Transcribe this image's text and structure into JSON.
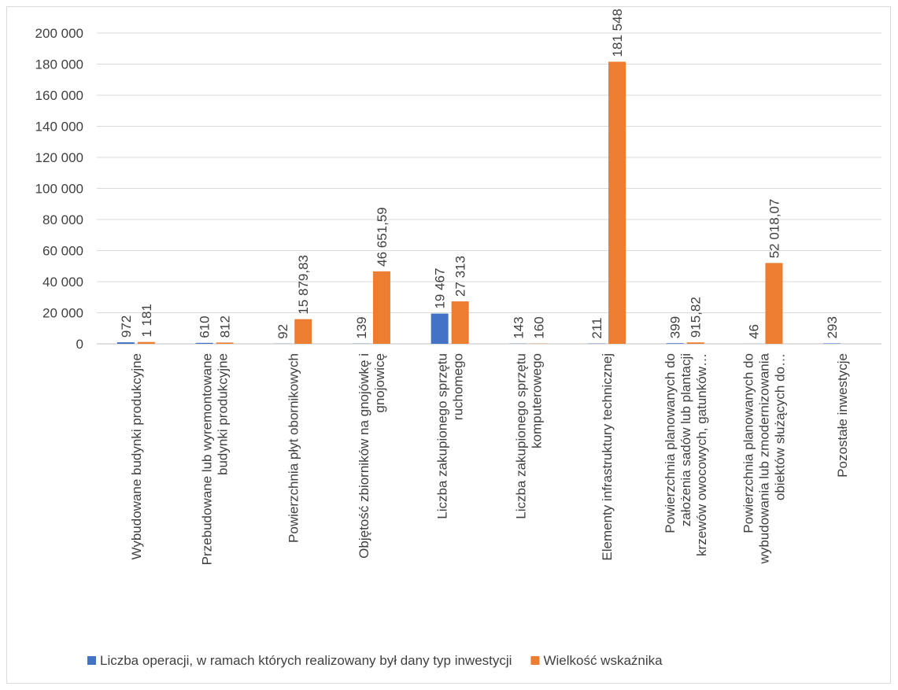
{
  "chart_data": {
    "type": "bar",
    "categories": [
      [
        "Wybudowane budynki produkcyjne"
      ],
      [
        "Przebudowane lub wyremontowane",
        "budynki produkcyjne"
      ],
      [
        "Powierzchnia płyt obornikowych"
      ],
      [
        "Objętość zbiorników na gnojówkę i",
        "gnojowicę"
      ],
      [
        "Liczba zakupionego sprzętu",
        "ruchomego"
      ],
      [
        "Liczba zakupionego sprzętu",
        "komputerowego"
      ],
      [
        "Elementy infrastruktury technicznej"
      ],
      [
        "Powierzchnia planowanych do",
        "założenia sadów lub plantacji",
        "krzewów owocowych, gatunków…"
      ],
      [
        "Powierzchnia planowanych do",
        "wybudowania lub zmodernizowania",
        "obiektów służących do…"
      ],
      [
        "Pozostałe inwestycje"
      ]
    ],
    "series": [
      {
        "name": "Liczba operacji, w ramach których realizowany był dany typ inwestycji",
        "color": "#4472C4",
        "values": [
          972,
          610,
          92,
          139,
          19467,
          143,
          211,
          399,
          46,
          293
        ],
        "labels": [
          "972",
          "610",
          "92",
          "139",
          "19 467",
          "143",
          "211",
          "399",
          "46",
          "293"
        ]
      },
      {
        "name": "Wielkość wskaźnika",
        "color": "#ED7D31",
        "values": [
          1181,
          812,
          15879.83,
          46651.59,
          27313,
          160,
          181548,
          915.82,
          52018.07,
          null
        ],
        "labels": [
          "1 181",
          "812",
          "15 879,83",
          "46 651,59",
          "27 313",
          "160",
          "181 548",
          "915,82",
          "52 018,07",
          ""
        ]
      }
    ],
    "yticks": [
      "0",
      "20 000",
      "40 000",
      "60 000",
      "80 000",
      "100 000",
      "120 000",
      "140 000",
      "160 000",
      "180 000",
      "200 000"
    ],
    "ylim": [
      0,
      200000
    ],
    "grid": true,
    "legend_position": "bottom"
  }
}
